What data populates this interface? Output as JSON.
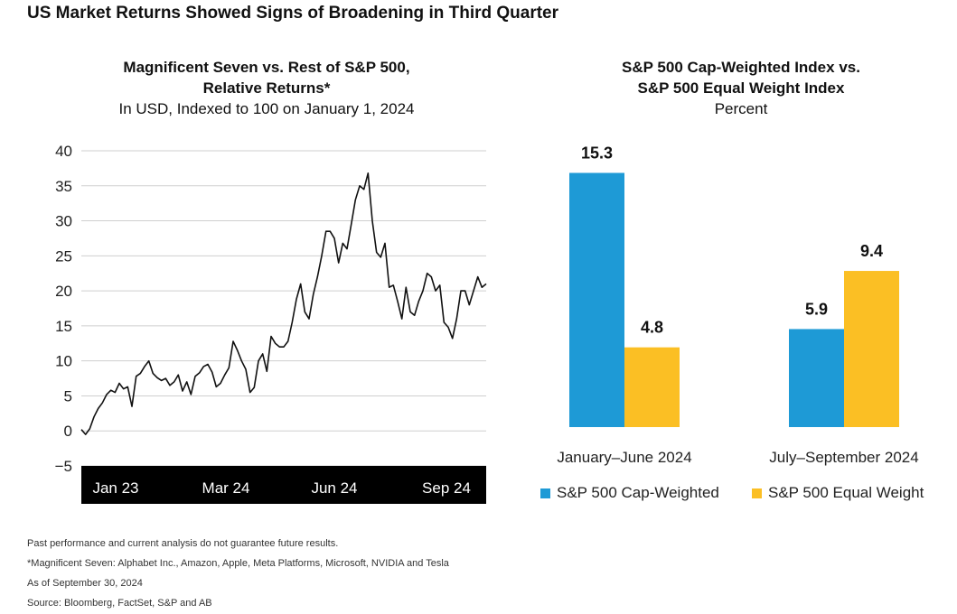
{
  "headline": "US Market Returns Showed Signs of Broadening in Third Quarter",
  "colors": {
    "line": "#111111",
    "cap_weighted": "#1e9ad6",
    "equal_weight": "#fbbf24",
    "axis_bar": "#000000"
  },
  "chart_data": [
    {
      "type": "line",
      "title": "Magnificent Seven vs. Rest of S&P 500,",
      "title_line2": "Relative Returns*",
      "subtitle": "In USD, Indexed to 100 on January 1, 2024",
      "xlabel": "",
      "ylabel": "",
      "ylim": [
        -5,
        40
      ],
      "yticks": [
        "40",
        "35",
        "30",
        "25",
        "20",
        "15",
        "10",
        "5",
        "0",
        "−5"
      ],
      "ytick_values": [
        40,
        35,
        30,
        25,
        20,
        15,
        10,
        5,
        0,
        -5
      ],
      "xticks": [
        "Jan 23",
        "Mar 24",
        "Jun 24",
        "Sep 24"
      ],
      "grid": true,
      "series": [
        {
          "values": [
            0.2,
            -0.5,
            0.3,
            2,
            3.2,
            4,
            5.2,
            5.8,
            5.5,
            6.8,
            6,
            6.3,
            3.5,
            7.8,
            8.2,
            9.2,
            10,
            8.2,
            7.6,
            7.2,
            7.5,
            6.5,
            7,
            8,
            5.7,
            7,
            5.2,
            7.8,
            8.3,
            9.2,
            9.5,
            8.4,
            6.3,
            6.8,
            8,
            9,
            12.8,
            11.5,
            10,
            8.8,
            5.5,
            6.2,
            10,
            11,
            8.5,
            13.5,
            12.5,
            12,
            12,
            12.8,
            15.5,
            18.8,
            21,
            17,
            16,
            19.5,
            22,
            25,
            28.5,
            28.5,
            27.5,
            24,
            26.8,
            26,
            29.5,
            33,
            35,
            34.5,
            36.8,
            30,
            25.5,
            24.8,
            26.8,
            20.5,
            20.8,
            18.5,
            16,
            20.5,
            17,
            16.5,
            18.5,
            20,
            22.5,
            22,
            20,
            20.8,
            15.5,
            14.8,
            13.2,
            16,
            20,
            20,
            18,
            20,
            22,
            20.5,
            21
          ]
        }
      ]
    },
    {
      "type": "bar",
      "title": "S&P 500 Cap-Weighted Index vs.",
      "title_line2": "S&P 500 Equal Weight Index",
      "subtitle": "Percent",
      "categories": [
        "January–June 2024",
        "July–September 2024"
      ],
      "ylim": [
        0,
        16
      ],
      "grid": false,
      "legend_position": "bottom",
      "series": [
        {
          "name": "S&P 500 Cap-Weighted",
          "values": [
            15.3,
            5.9
          ],
          "labels": [
            "15.3",
            "5.9"
          ]
        },
        {
          "name": "S&P 500 Equal Weight",
          "values": [
            4.8,
            9.4
          ],
          "labels": [
            "4.8",
            "9.4"
          ]
        }
      ]
    }
  ],
  "footnotes": [
    "Past performance and current analysis do not guarantee future results.",
    "*Magnificent Seven: Alphabet Inc., Amazon, Apple, Meta Platforms, Microsoft, NVIDIA and Tesla",
    "As of September 30, 2024",
    "Source: Bloomberg, FactSet, S&P and AB"
  ]
}
